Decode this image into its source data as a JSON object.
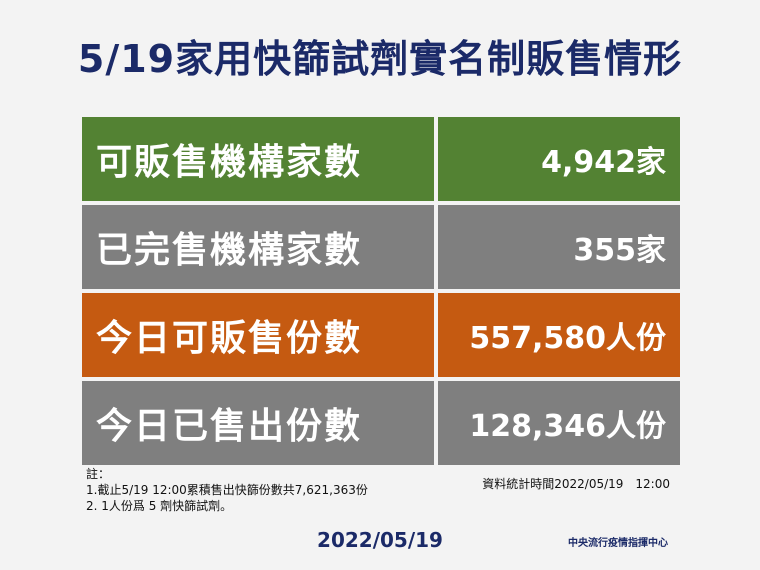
{
  "title": "5/19家用快篩試劑實名制販售情形",
  "rows": [
    {
      "label": "可販售機構家數",
      "value": "4,942家",
      "color": "#538233"
    },
    {
      "label": "已完售機構家數",
      "value": "355家",
      "color": "#7f7f7f"
    },
    {
      "label": "今日可販售份數",
      "value": "557,580人份",
      "color": "#c55a11"
    },
    {
      "label": "今日已售出份數",
      "value": "128,346人份",
      "color": "#7f7f7f"
    }
  ],
  "notes": {
    "heading": "註：",
    "line1": "1.截止5/19 12:00累積售出快篩份數共7,621,363份",
    "line2": "2. 1人份爲 5 劑快篩試劑。"
  },
  "source": "資料統計時間2022/05/19　12:00",
  "date": "2022/05/19",
  "agency": "中央流行疫情指揮中心"
}
